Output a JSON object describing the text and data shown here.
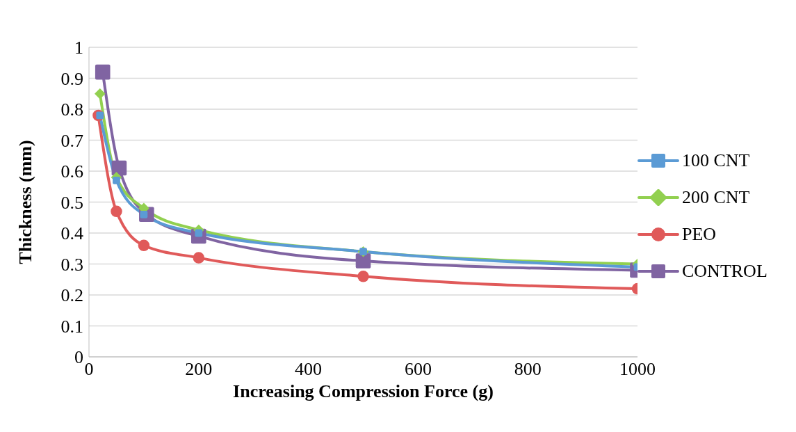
{
  "chart_data": {
    "type": "line",
    "xlabel": "Increasing Compression Force (g)",
    "ylabel": "Thickness (mm)",
    "xlim": [
      0,
      1000
    ],
    "xticks": [
      0,
      200,
      400,
      600,
      800,
      1000
    ],
    "ylim": [
      0,
      1
    ],
    "yticks": [
      0,
      0.1,
      0.2,
      0.3,
      0.4,
      0.5,
      0.6,
      0.7,
      0.8,
      0.9,
      1
    ],
    "grid": "y",
    "legend": "right",
    "series": [
      {
        "name": "100 CNT",
        "color": "#5b9bd5",
        "marker": "square",
        "x": [
          20,
          50,
          100,
          200,
          500,
          1000
        ],
        "values": [
          0.78,
          0.57,
          0.46,
          0.4,
          0.34,
          0.29
        ]
      },
      {
        "name": "200 CNT",
        "color": "#92d050",
        "marker": "diamond",
        "x": [
          20,
          50,
          100,
          200,
          500,
          1000
        ],
        "values": [
          0.85,
          0.58,
          0.48,
          0.41,
          0.34,
          0.3
        ]
      },
      {
        "name": "PEO",
        "color": "#e05a5a",
        "marker": "circle",
        "x": [
          17,
          50,
          100,
          200,
          500,
          1000
        ],
        "values": [
          0.78,
          0.47,
          0.36,
          0.32,
          0.26,
          0.22
        ]
      },
      {
        "name": "CONTROL",
        "color": "#8064a2",
        "marker": "square",
        "x": [
          25,
          55,
          105,
          200,
          500,
          1000
        ],
        "values": [
          0.92,
          0.61,
          0.46,
          0.39,
          0.31,
          0.28
        ]
      }
    ]
  }
}
